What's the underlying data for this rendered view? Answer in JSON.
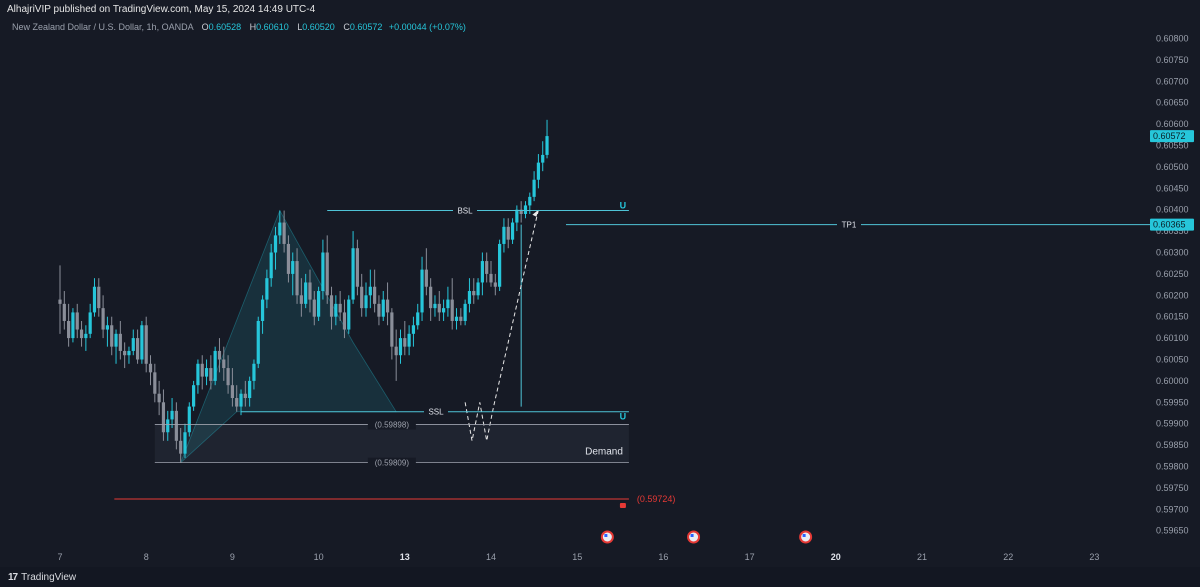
{
  "header": {
    "published": "AlhajriVIP published on TradingView.com, May 15, 2024 14:49 UTC-4"
  },
  "legend": {
    "symbol": "New Zealand Dollar / U.S. Dollar, 1h, OANDA",
    "open_key": "O",
    "open": "0.60528",
    "high_key": "H",
    "high": "0.60610",
    "low_key": "L",
    "low": "0.60520",
    "close_key": "C",
    "close": "0.60572",
    "change": "+0.00044 (+0.07%)"
  },
  "footer": {
    "brand": "TradingView",
    "logo_glyph": "17"
  },
  "colors": {
    "background": "#161a25",
    "up": "#26c6da",
    "down": "#8a8e99",
    "level": "#4fc3d6",
    "support": "#e53935",
    "zone": "#1f2430"
  },
  "chart_data": {
    "type": "candlestick",
    "y_axis": {
      "min": 0.5964,
      "max": 0.6082,
      "ticks": [
        "0.60800",
        "0.60750",
        "0.60700",
        "0.60650",
        "0.60600",
        "0.60550",
        "0.60500",
        "0.60450",
        "0.60400",
        "0.60350",
        "0.60300",
        "0.60250",
        "0.60200",
        "0.60150",
        "0.60100",
        "0.60050",
        "0.60000",
        "0.59950",
        "0.59900",
        "0.59850",
        "0.59800",
        "0.59750",
        "0.59700",
        "0.59650"
      ]
    },
    "x_axis": {
      "ticks": [
        {
          "label": "7",
          "pos": 0
        },
        {
          "label": "8",
          "pos": 1
        },
        {
          "label": "9",
          "pos": 2
        },
        {
          "label": "10",
          "pos": 3
        },
        {
          "label": "13",
          "pos": 4
        },
        {
          "label": "14",
          "pos": 5
        },
        {
          "label": "15",
          "pos": 6
        },
        {
          "label": "16",
          "pos": 7
        },
        {
          "label": "17",
          "pos": 8
        },
        {
          "label": "20",
          "pos": 9
        },
        {
          "label": "21",
          "pos": 10
        },
        {
          "label": "22",
          "pos": 11
        },
        {
          "label": "23",
          "pos": 12
        }
      ]
    },
    "close_price": 0.60572,
    "close_label": "0.60572",
    "tp_price": 0.60365,
    "tp_label": "0.60365",
    "levels": [
      {
        "name": "BSL",
        "price": 0.60398,
        "from": 3.1,
        "to": 6.6
      },
      {
        "name": "SSL",
        "price": 0.59928,
        "from": 2.1,
        "to": 6.6
      },
      {
        "name": "TP1",
        "price": 0.60365,
        "from": 5.87,
        "to": 12.8
      }
    ],
    "price_notes": [
      {
        "label": "(0.59898)",
        "price": 0.59898,
        "from": 1.1,
        "to": 6.6
      },
      {
        "label": "(0.59809)",
        "price": 0.59809,
        "from": 1.1,
        "to": 6.6
      }
    ],
    "support": {
      "label": "(0.59724)",
      "price": 0.59724,
      "from": 0.63,
      "to": 6.6
    },
    "zone": {
      "label": "Demand",
      "top": 0.59898,
      "bottom": 0.59809,
      "from": 1.1,
      "to": 6.6
    },
    "candles": [
      {
        "t": 0.0,
        "o": 0.6019,
        "h": 0.6027,
        "l": 0.6011,
        "c": 0.6018
      },
      {
        "t": 0.05,
        "o": 0.6018,
        "h": 0.6021,
        "l": 0.6012,
        "c": 0.6014
      },
      {
        "t": 0.1,
        "o": 0.6014,
        "h": 0.6018,
        "l": 0.6008,
        "c": 0.601
      },
      {
        "t": 0.15,
        "o": 0.601,
        "h": 0.6017,
        "l": 0.6009,
        "c": 0.6016
      },
      {
        "t": 0.2,
        "o": 0.6016,
        "h": 0.6018,
        "l": 0.601,
        "c": 0.6012
      },
      {
        "t": 0.25,
        "o": 0.6012,
        "h": 0.6014,
        "l": 0.6008,
        "c": 0.601
      },
      {
        "t": 0.3,
        "o": 0.601,
        "h": 0.6013,
        "l": 0.6007,
        "c": 0.6011
      },
      {
        "t": 0.35,
        "o": 0.6011,
        "h": 0.6018,
        "l": 0.601,
        "c": 0.6016
      },
      {
        "t": 0.4,
        "o": 0.6016,
        "h": 0.6024,
        "l": 0.6015,
        "c": 0.6022
      },
      {
        "t": 0.45,
        "o": 0.6022,
        "h": 0.6024,
        "l": 0.6015,
        "c": 0.6017
      },
      {
        "t": 0.5,
        "o": 0.6017,
        "h": 0.602,
        "l": 0.601,
        "c": 0.6012
      },
      {
        "t": 0.55,
        "o": 0.6012,
        "h": 0.6015,
        "l": 0.6008,
        "c": 0.6013
      },
      {
        "t": 0.6,
        "o": 0.6013,
        "h": 0.6015,
        "l": 0.6006,
        "c": 0.6008
      },
      {
        "t": 0.65,
        "o": 0.6008,
        "h": 0.6012,
        "l": 0.6004,
        "c": 0.6011
      },
      {
        "t": 0.7,
        "o": 0.6011,
        "h": 0.6014,
        "l": 0.6005,
        "c": 0.6007
      },
      {
        "t": 0.75,
        "o": 0.6007,
        "h": 0.6009,
        "l": 0.6003,
        "c": 0.6006
      },
      {
        "t": 0.8,
        "o": 0.6006,
        "h": 0.6008,
        "l": 0.6004,
        "c": 0.6007
      },
      {
        "t": 0.85,
        "o": 0.6007,
        "h": 0.6012,
        "l": 0.6006,
        "c": 0.601
      },
      {
        "t": 0.9,
        "o": 0.601,
        "h": 0.6012,
        "l": 0.6004,
        "c": 0.6005
      },
      {
        "t": 0.95,
        "o": 0.6005,
        "h": 0.6014,
        "l": 0.6004,
        "c": 0.6013
      },
      {
        "t": 1.0,
        "o": 0.6013,
        "h": 0.6015,
        "l": 0.6002,
        "c": 0.6004
      },
      {
        "t": 1.05,
        "o": 0.6004,
        "h": 0.6006,
        "l": 0.5999,
        "c": 0.6002
      },
      {
        "t": 1.1,
        "o": 0.6002,
        "h": 0.6004,
        "l": 0.5995,
        "c": 0.5997
      },
      {
        "t": 1.15,
        "o": 0.5997,
        "h": 0.6,
        "l": 0.5992,
        "c": 0.5995
      },
      {
        "t": 1.2,
        "o": 0.5995,
        "h": 0.5998,
        "l": 0.5986,
        "c": 0.5988
      },
      {
        "t": 1.25,
        "o": 0.5988,
        "h": 0.5993,
        "l": 0.5986,
        "c": 0.5991
      },
      {
        "t": 1.3,
        "o": 0.5991,
        "h": 0.5996,
        "l": 0.5989,
        "c": 0.5993
      },
      {
        "t": 1.35,
        "o": 0.5993,
        "h": 0.5995,
        "l": 0.5984,
        "c": 0.5986
      },
      {
        "t": 1.4,
        "o": 0.5986,
        "h": 0.5989,
        "l": 0.59809,
        "c": 0.5983
      },
      {
        "t": 1.45,
        "o": 0.5983,
        "h": 0.599,
        "l": 0.5982,
        "c": 0.5988
      },
      {
        "t": 1.5,
        "o": 0.5988,
        "h": 0.5995,
        "l": 0.5987,
        "c": 0.5994
      },
      {
        "t": 1.55,
        "o": 0.5994,
        "h": 0.6,
        "l": 0.5993,
        "c": 0.5999
      },
      {
        "t": 1.6,
        "o": 0.5999,
        "h": 0.6005,
        "l": 0.5997,
        "c": 0.6004
      },
      {
        "t": 1.65,
        "o": 0.6004,
        "h": 0.6006,
        "l": 0.5998,
        "c": 0.6001
      },
      {
        "t": 1.7,
        "o": 0.6001,
        "h": 0.6005,
        "l": 0.5999,
        "c": 0.6003
      },
      {
        "t": 1.75,
        "o": 0.6003,
        "h": 0.6006,
        "l": 0.5998,
        "c": 0.6
      },
      {
        "t": 1.8,
        "o": 0.6,
        "h": 0.6008,
        "l": 0.5999,
        "c": 0.6007
      },
      {
        "t": 1.85,
        "o": 0.6007,
        "h": 0.601,
        "l": 0.6002,
        "c": 0.6005
      },
      {
        "t": 1.9,
        "o": 0.6005,
        "h": 0.6008,
        "l": 0.6,
        "c": 0.6003
      },
      {
        "t": 1.95,
        "o": 0.6003,
        "h": 0.6006,
        "l": 0.5997,
        "c": 0.5999
      },
      {
        "t": 2.0,
        "o": 0.5999,
        "h": 0.6003,
        "l": 0.5994,
        "c": 0.5996
      },
      {
        "t": 2.05,
        "o": 0.5996,
        "h": 0.5999,
        "l": 0.59928,
        "c": 0.5994
      },
      {
        "t": 2.1,
        "o": 0.5994,
        "h": 0.5998,
        "l": 0.5992,
        "c": 0.5997
      },
      {
        "t": 2.15,
        "o": 0.5997,
        "h": 0.6,
        "l": 0.5994,
        "c": 0.5996
      },
      {
        "t": 2.2,
        "o": 0.5996,
        "h": 0.6001,
        "l": 0.5994,
        "c": 0.6
      },
      {
        "t": 2.25,
        "o": 0.6,
        "h": 0.6005,
        "l": 0.5998,
        "c": 0.6004
      },
      {
        "t": 2.3,
        "o": 0.6004,
        "h": 0.6015,
        "l": 0.6003,
        "c": 0.6014
      },
      {
        "t": 2.35,
        "o": 0.6014,
        "h": 0.602,
        "l": 0.6011,
        "c": 0.6019
      },
      {
        "t": 2.4,
        "o": 0.6019,
        "h": 0.6026,
        "l": 0.6017,
        "c": 0.6024
      },
      {
        "t": 2.45,
        "o": 0.6024,
        "h": 0.6032,
        "l": 0.6022,
        "c": 0.603
      },
      {
        "t": 2.5,
        "o": 0.603,
        "h": 0.6036,
        "l": 0.6026,
        "c": 0.6034
      },
      {
        "t": 2.55,
        "o": 0.6034,
        "h": 0.60398,
        "l": 0.6032,
        "c": 0.6037
      },
      {
        "t": 2.6,
        "o": 0.6037,
        "h": 0.60398,
        "l": 0.603,
        "c": 0.6032
      },
      {
        "t": 2.65,
        "o": 0.6032,
        "h": 0.6034,
        "l": 0.6023,
        "c": 0.6025
      },
      {
        "t": 2.7,
        "o": 0.6025,
        "h": 0.603,
        "l": 0.602,
        "c": 0.6028
      },
      {
        "t": 2.75,
        "o": 0.6028,
        "h": 0.6031,
        "l": 0.6018,
        "c": 0.602
      },
      {
        "t": 2.8,
        "o": 0.602,
        "h": 0.6024,
        "l": 0.6015,
        "c": 0.6018
      },
      {
        "t": 2.85,
        "o": 0.6018,
        "h": 0.6025,
        "l": 0.6017,
        "c": 0.6023
      },
      {
        "t": 2.9,
        "o": 0.6023,
        "h": 0.6026,
        "l": 0.6016,
        "c": 0.6019
      },
      {
        "t": 2.95,
        "o": 0.6019,
        "h": 0.6021,
        "l": 0.6013,
        "c": 0.6015
      },
      {
        "t": 3.0,
        "o": 0.6015,
        "h": 0.6022,
        "l": 0.6014,
        "c": 0.6021
      },
      {
        "t": 3.05,
        "o": 0.6021,
        "h": 0.6033,
        "l": 0.6019,
        "c": 0.603
      },
      {
        "t": 3.1,
        "o": 0.603,
        "h": 0.6034,
        "l": 0.6018,
        "c": 0.602
      },
      {
        "t": 3.15,
        "o": 0.602,
        "h": 0.6022,
        "l": 0.6012,
        "c": 0.6015
      },
      {
        "t": 3.2,
        "o": 0.6015,
        "h": 0.602,
        "l": 0.6013,
        "c": 0.6018
      },
      {
        "t": 3.25,
        "o": 0.6018,
        "h": 0.6021,
        "l": 0.6014,
        "c": 0.6016
      },
      {
        "t": 3.3,
        "o": 0.6016,
        "h": 0.6019,
        "l": 0.601,
        "c": 0.6012
      },
      {
        "t": 3.35,
        "o": 0.6012,
        "h": 0.602,
        "l": 0.6011,
        "c": 0.6019
      },
      {
        "t": 3.4,
        "o": 0.6019,
        "h": 0.6035,
        "l": 0.6018,
        "c": 0.6031
      },
      {
        "t": 3.45,
        "o": 0.6031,
        "h": 0.6033,
        "l": 0.602,
        "c": 0.6022
      },
      {
        "t": 3.5,
        "o": 0.6022,
        "h": 0.6025,
        "l": 0.6015,
        "c": 0.6017
      },
      {
        "t": 3.55,
        "o": 0.6017,
        "h": 0.6023,
        "l": 0.6015,
        "c": 0.602
      },
      {
        "t": 3.6,
        "o": 0.602,
        "h": 0.6026,
        "l": 0.6017,
        "c": 0.6022
      },
      {
        "t": 3.65,
        "o": 0.6022,
        "h": 0.6026,
        "l": 0.6016,
        "c": 0.6018
      },
      {
        "t": 3.7,
        "o": 0.6018,
        "h": 0.602,
        "l": 0.6013,
        "c": 0.6015
      },
      {
        "t": 3.75,
        "o": 0.6015,
        "h": 0.6021,
        "l": 0.6014,
        "c": 0.6019
      },
      {
        "t": 3.8,
        "o": 0.6019,
        "h": 0.6023,
        "l": 0.6013,
        "c": 0.6016
      },
      {
        "t": 3.85,
        "o": 0.6016,
        "h": 0.6017,
        "l": 0.6005,
        "c": 0.6008
      },
      {
        "t": 3.9,
        "o": 0.6008,
        "h": 0.6012,
        "l": 0.6,
        "c": 0.6006
      },
      {
        "t": 3.95,
        "o": 0.6006,
        "h": 0.6012,
        "l": 0.6004,
        "c": 0.601
      },
      {
        "t": 4.0,
        "o": 0.601,
        "h": 0.6014,
        "l": 0.6006,
        "c": 0.6008
      },
      {
        "t": 4.05,
        "o": 0.6008,
        "h": 0.6013,
        "l": 0.6006,
        "c": 0.6011
      },
      {
        "t": 4.1,
        "o": 0.6011,
        "h": 0.6015,
        "l": 0.6008,
        "c": 0.6013
      },
      {
        "t": 4.15,
        "o": 0.6013,
        "h": 0.6018,
        "l": 0.6012,
        "c": 0.6016
      },
      {
        "t": 4.2,
        "o": 0.6016,
        "h": 0.6029,
        "l": 0.6014,
        "c": 0.6026
      },
      {
        "t": 4.25,
        "o": 0.6026,
        "h": 0.6031,
        "l": 0.602,
        "c": 0.6022
      },
      {
        "t": 4.3,
        "o": 0.6022,
        "h": 0.6024,
        "l": 0.6014,
        "c": 0.6017
      },
      {
        "t": 4.35,
        "o": 0.6017,
        "h": 0.602,
        "l": 0.6015,
        "c": 0.6018
      },
      {
        "t": 4.4,
        "o": 0.6018,
        "h": 0.6021,
        "l": 0.6014,
        "c": 0.6016
      },
      {
        "t": 4.45,
        "o": 0.6016,
        "h": 0.6019,
        "l": 0.6014,
        "c": 0.6017
      },
      {
        "t": 4.5,
        "o": 0.6017,
        "h": 0.6022,
        "l": 0.6015,
        "c": 0.6019
      },
      {
        "t": 4.55,
        "o": 0.6019,
        "h": 0.6024,
        "l": 0.6012,
        "c": 0.6014
      },
      {
        "t": 4.6,
        "o": 0.6014,
        "h": 0.6017,
        "l": 0.6012,
        "c": 0.6015
      },
      {
        "t": 4.65,
        "o": 0.6015,
        "h": 0.6017,
        "l": 0.6013,
        "c": 0.6014
      },
      {
        "t": 4.7,
        "o": 0.6014,
        "h": 0.6019,
        "l": 0.6013,
        "c": 0.6018
      },
      {
        "t": 4.75,
        "o": 0.6018,
        "h": 0.6024,
        "l": 0.6016,
        "c": 0.6021
      },
      {
        "t": 4.8,
        "o": 0.6021,
        "h": 0.6024,
        "l": 0.6018,
        "c": 0.602
      },
      {
        "t": 4.85,
        "o": 0.602,
        "h": 0.6024,
        "l": 0.6019,
        "c": 0.6023
      },
      {
        "t": 4.9,
        "o": 0.6023,
        "h": 0.603,
        "l": 0.602,
        "c": 0.6028
      },
      {
        "t": 4.95,
        "o": 0.6028,
        "h": 0.603,
        "l": 0.6023,
        "c": 0.6025
      },
      {
        "t": 5.0,
        "o": 0.6025,
        "h": 0.6028,
        "l": 0.6022,
        "c": 0.6023
      },
      {
        "t": 5.05,
        "o": 0.6023,
        "h": 0.6025,
        "l": 0.602,
        "c": 0.6022
      },
      {
        "t": 5.1,
        "o": 0.6022,
        "h": 0.6033,
        "l": 0.6021,
        "c": 0.6032
      },
      {
        "t": 5.15,
        "o": 0.6032,
        "h": 0.6038,
        "l": 0.603,
        "c": 0.6036
      },
      {
        "t": 5.2,
        "o": 0.6036,
        "h": 0.6038,
        "l": 0.6031,
        "c": 0.6033
      },
      {
        "t": 5.25,
        "o": 0.6033,
        "h": 0.6038,
        "l": 0.6032,
        "c": 0.6037
      },
      {
        "t": 5.3,
        "o": 0.6037,
        "h": 0.6041,
        "l": 0.6035,
        "c": 0.604
      },
      {
        "t": 5.35,
        "o": 0.604,
        "h": 0.6042,
        "l": 0.6037,
        "c": 0.6039
      },
      {
        "t": 5.4,
        "o": 0.6039,
        "h": 0.6042,
        "l": 0.6038,
        "c": 0.6041
      },
      {
        "t": 5.45,
        "o": 0.6041,
        "h": 0.6044,
        "l": 0.6039,
        "c": 0.6043
      },
      {
        "t": 5.5,
        "o": 0.6043,
        "h": 0.6049,
        "l": 0.6042,
        "c": 0.6047
      },
      {
        "t": 5.55,
        "o": 0.6047,
        "h": 0.6053,
        "l": 0.6045,
        "c": 0.6051
      },
      {
        "t": 5.6,
        "o": 0.6051,
        "h": 0.6056,
        "l": 0.6049,
        "c": 0.60528
      },
      {
        "t": 5.65,
        "o": 0.60528,
        "h": 0.6061,
        "l": 0.6052,
        "c": 0.60572
      }
    ],
    "annotations": {
      "triangle": [
        [
          1.4,
          0.59809
        ],
        [
          2.55,
          0.60398
        ],
        [
          3.4,
          0.6009
        ],
        [
          3.9,
          0.59928
        ],
        [
          2.05,
          0.59928
        ]
      ],
      "wick_line": [
        [
          5.35,
          0.5994
        ],
        [
          5.35,
          0.60365
        ]
      ],
      "dashed_path": [
        [
          4.7,
          0.5995
        ],
        [
          4.78,
          0.5986
        ],
        [
          4.87,
          0.5995
        ],
        [
          4.95,
          0.5986
        ],
        [
          5.03,
          0.5994
        ],
        [
          5.55,
          0.604
        ]
      ],
      "event_markers": [
        6.35,
        7.35,
        8.65
      ]
    }
  }
}
